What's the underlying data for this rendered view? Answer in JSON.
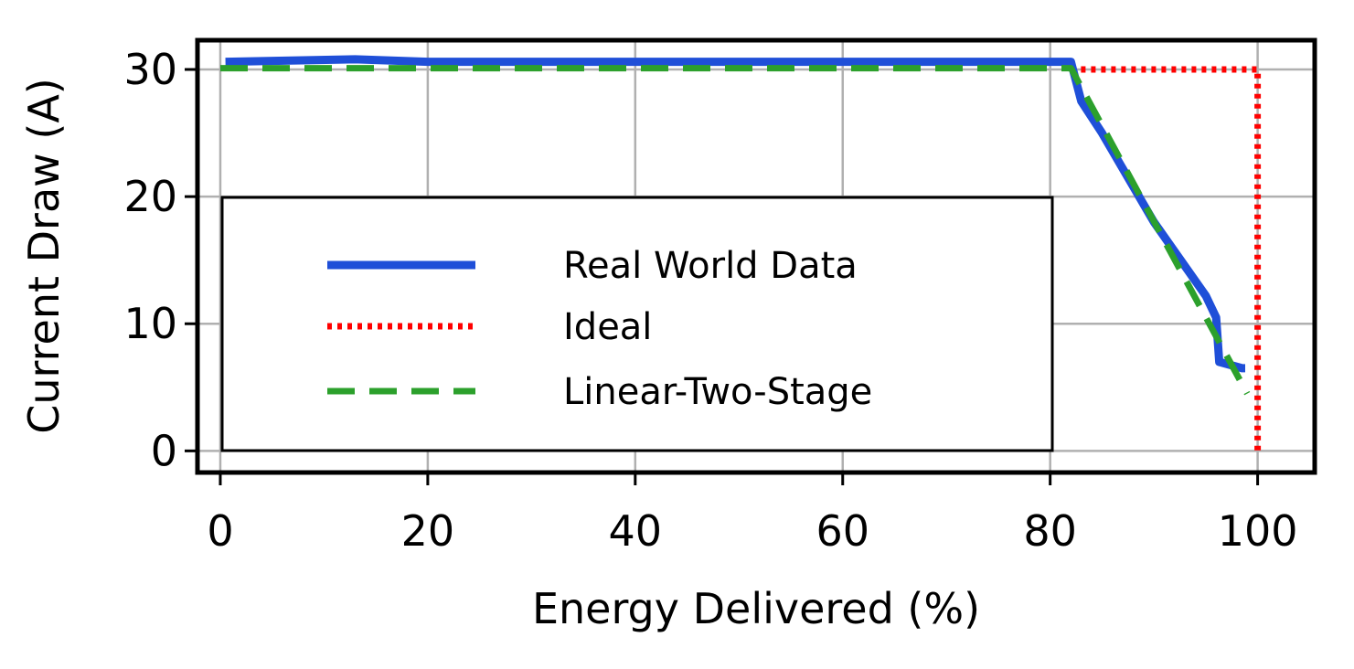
{
  "chart_data": {
    "type": "line",
    "title": "",
    "xlabel": "Energy Delivered (%)",
    "ylabel": "Current Draw (A)",
    "xlim": [
      -2.2,
      105.5
    ],
    "ylim": [
      -1.7,
      32.3
    ],
    "xticks": [
      0,
      20,
      40,
      60,
      80,
      100
    ],
    "yticks": [
      0,
      10,
      20,
      30
    ],
    "grid": true,
    "legend_position": "center-left",
    "series": [
      {
        "name": "Real World Data",
        "style": "solid",
        "color": "#1f4fd8",
        "x": [
          0.5,
          13,
          20,
          40,
          60,
          82,
          83,
          85,
          90,
          95,
          96,
          96.3,
          98.5,
          98.8
        ],
        "y": [
          30.6,
          30.8,
          30.6,
          30.6,
          30.6,
          30.6,
          27.5,
          25.0,
          18.0,
          12.2,
          10.5,
          7.0,
          6.5,
          6.5
        ]
      },
      {
        "name": "Ideal",
        "style": "dotted",
        "color": "#ff0000",
        "x": [
          82,
          100,
          100
        ],
        "y": [
          30.0,
          30.0,
          0
        ]
      },
      {
        "name": "Linear-Two-Stage",
        "style": "dashed",
        "color": "#2ca02c",
        "x": [
          0,
          82,
          99
        ],
        "y": [
          30.1,
          30.1,
          4.5
        ]
      }
    ]
  }
}
